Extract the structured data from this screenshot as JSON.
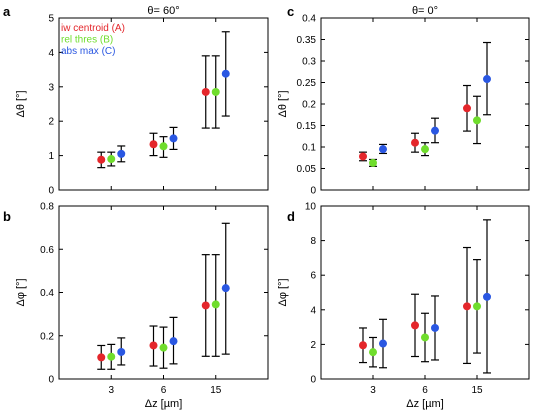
{
  "series_names": [
    "iw centroid (A)",
    "rel thres (B)",
    "abs max (C)"
  ],
  "series_colors": [
    "#e4262b",
    "#6fdd2c",
    "#2a57e2"
  ],
  "error_bar_color": "#000000",
  "x_categories": [
    "3",
    "6",
    "15"
  ],
  "x_axis_label": "Δz [µm]",
  "chart_data": [
    {
      "type": "scatter",
      "panel": "a",
      "title": "θ= 60°",
      "ylabel": "Δθ [°]",
      "xlabel": "",
      "ylim": [
        0,
        5
      ],
      "yticks": [
        "0",
        "1",
        "2",
        "3",
        "4",
        "5"
      ],
      "categories": [
        "3",
        "6",
        "15"
      ],
      "legend": "top-left",
      "grid": false,
      "series": [
        {
          "name": "iw centroid (A)",
          "values": [
            0.88,
            1.33,
            2.85
          ],
          "err_low": [
            0.65,
            1.0,
            1.8
          ],
          "err_high": [
            1.1,
            1.65,
            3.9
          ]
        },
        {
          "name": "rel thres (B)",
          "values": [
            0.9,
            1.27,
            2.85
          ],
          "err_low": [
            0.7,
            0.95,
            1.8
          ],
          "err_high": [
            1.1,
            1.55,
            3.9
          ]
        },
        {
          "name": "abs max (C)",
          "values": [
            1.05,
            1.5,
            3.38
          ],
          "err_low": [
            0.82,
            1.18,
            2.15
          ],
          "err_high": [
            1.28,
            1.82,
            4.6
          ]
        }
      ]
    },
    {
      "type": "scatter",
      "panel": "b",
      "title": "",
      "ylabel": "Δφ [°]",
      "xlabel": "Δz [µm]",
      "ylim": [
        0,
        0.8
      ],
      "yticks": [
        "0",
        "0.2",
        "0.4",
        "0.6",
        "0.8"
      ],
      "categories": [
        "3",
        "6",
        "15"
      ],
      "legend": "",
      "grid": false,
      "series": [
        {
          "name": "iw centroid (A)",
          "values": [
            0.1,
            0.155,
            0.34
          ],
          "err_low": [
            0.045,
            0.06,
            0.105
          ],
          "err_high": [
            0.155,
            0.245,
            0.575
          ]
        },
        {
          "name": "rel thres (B)",
          "values": [
            0.103,
            0.145,
            0.345
          ],
          "err_low": [
            0.045,
            0.05,
            0.105
          ],
          "err_high": [
            0.16,
            0.24,
            0.575
          ]
        },
        {
          "name": "abs max (C)",
          "values": [
            0.125,
            0.175,
            0.42
          ],
          "err_low": [
            0.065,
            0.07,
            0.115
          ],
          "err_high": [
            0.19,
            0.285,
            0.72
          ]
        }
      ]
    },
    {
      "type": "scatter",
      "panel": "c",
      "title": "θ= 0°",
      "ylabel": "Δθ [°]",
      "xlabel": "",
      "ylim": [
        0,
        0.4
      ],
      "yticks": [
        "0",
        "0.05",
        "0.1",
        "0.15",
        "0.2",
        "0.25",
        "0.3",
        "0.35",
        "0.4"
      ],
      "categories": [
        "3",
        "6",
        "15"
      ],
      "legend": "",
      "grid": false,
      "series": [
        {
          "name": "iw centroid (A)",
          "values": [
            0.078,
            0.11,
            0.19
          ],
          "err_low": [
            0.068,
            0.088,
            0.137
          ],
          "err_high": [
            0.088,
            0.132,
            0.243
          ]
        },
        {
          "name": "rel thres (B)",
          "values": [
            0.063,
            0.095,
            0.162
          ],
          "err_low": [
            0.055,
            0.08,
            0.108
          ],
          "err_high": [
            0.071,
            0.11,
            0.218
          ]
        },
        {
          "name": "abs max (C)",
          "values": [
            0.095,
            0.138,
            0.258
          ],
          "err_low": [
            0.085,
            0.11,
            0.175
          ],
          "err_high": [
            0.106,
            0.167,
            0.343
          ]
        }
      ]
    },
    {
      "type": "scatter",
      "panel": "d",
      "title": "",
      "ylabel": "Δφ [°]",
      "xlabel": "Δz [µm]",
      "ylim": [
        0,
        10
      ],
      "yticks": [
        "0",
        "2",
        "4",
        "6",
        "8",
        "10"
      ],
      "categories": [
        "3",
        "6",
        "15"
      ],
      "legend": "",
      "grid": false,
      "series": [
        {
          "name": "iw centroid (A)",
          "values": [
            1.95,
            3.1,
            4.2
          ],
          "err_low": [
            0.95,
            1.3,
            0.9
          ],
          "err_high": [
            2.95,
            4.9,
            7.6
          ]
        },
        {
          "name": "rel thres (B)",
          "values": [
            1.55,
            2.4,
            4.2
          ],
          "err_low": [
            0.7,
            1.0,
            1.5
          ],
          "err_high": [
            2.4,
            3.8,
            6.9
          ]
        },
        {
          "name": "abs max (C)",
          "values": [
            2.05,
            2.95,
            4.75
          ],
          "err_low": [
            0.65,
            1.1,
            0.35
          ],
          "err_high": [
            3.45,
            4.8,
            9.2
          ]
        }
      ]
    }
  ]
}
